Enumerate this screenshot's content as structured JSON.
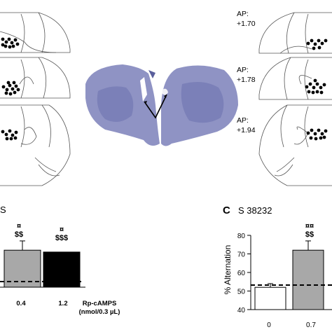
{
  "panels": {
    "top_right_ap": [
      "AP:",
      "+1.70",
      "AP:",
      "+1.78",
      "AP:",
      "+1.94"
    ],
    "panel_b": {
      "title_partial": "S",
      "annotations": [
        {
          "sym": "¤",
          "sub": "$$"
        },
        {
          "sym": "¤",
          "sub": "$$$"
        }
      ],
      "x_ticks": [
        "0.4",
        "1.2"
      ],
      "drug_label": "Rp-cAMPS",
      "dose_label": "(nmol/0.3 µL)"
    },
    "panel_c": {
      "letter": "C",
      "title": "S 38232",
      "ylabel": "% Alternation",
      "y_ticks": [
        "40",
        "50",
        "60",
        "70",
        "80"
      ],
      "x_ticks": [
        "0",
        "0.7"
      ],
      "annotation": {
        "sym": "¤¤",
        "sub": "$$"
      }
    }
  },
  "chart_data": [
    {
      "type": "bar",
      "title": "",
      "ylabel": "",
      "categories": [
        "0.4",
        "1.2"
      ],
      "values": [
        72,
        71
      ],
      "colors": [
        "#a8a8a8",
        "#000000"
      ],
      "reference_line": 50,
      "ylim": [
        40,
        80
      ]
    },
    {
      "type": "bar",
      "title": "S 38232",
      "ylabel": "% Alternation",
      "categories": [
        "0",
        "0.7"
      ],
      "values": [
        52,
        72
      ],
      "errors": [
        2,
        5
      ],
      "colors": [
        "#ffffff",
        "#a8a8a8"
      ],
      "reference_line": 50,
      "ylim": [
        40,
        80
      ]
    }
  ]
}
